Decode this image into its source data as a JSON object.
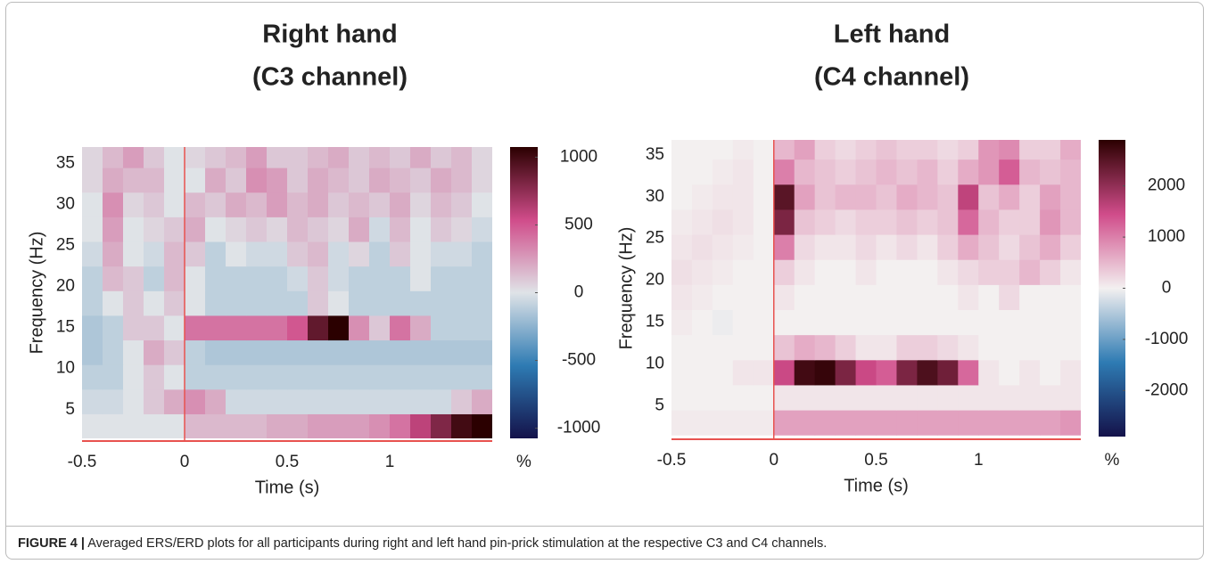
{
  "chart_data": [
    {
      "type": "heatmap",
      "title": "Right hand",
      "subtitle": "(C3 channel)",
      "x_label": "Time (s)",
      "y_label": "Frequency (Hz)",
      "colorbar_label": "%",
      "xlim": [
        -0.5,
        1.5
      ],
      "xticks": [
        -0.5,
        0,
        0.5,
        1
      ],
      "ylim": [
        1.5,
        37
      ],
      "yticks": [
        5,
        10,
        15,
        20,
        25,
        30,
        35
      ],
      "clim": [
        -1075,
        1075
      ],
      "cticks": [
        -1000,
        -500,
        0,
        500,
        1000
      ],
      "colors": [
        "#14124a",
        "#2e7bb3",
        "#dfe3e7",
        "#d04c8a",
        "#2b0000"
      ],
      "vline": 0,
      "line_color": "#e8524f",
      "x": [
        -0.45,
        -0.35,
        -0.25,
        -0.15,
        -0.05,
        0.05,
        0.15,
        0.25,
        0.35,
        0.45,
        0.55,
        0.65,
        0.75,
        0.85,
        0.95,
        1.05,
        1.15,
        1.25,
        1.35,
        1.45
      ],
      "y": [
        3,
        6,
        9,
        12,
        15,
        18,
        21,
        24,
        27,
        30,
        33,
        36
      ],
      "z": [
        [
          0,
          0,
          0,
          0,
          0,
          150,
          150,
          150,
          150,
          200,
          200,
          250,
          250,
          250,
          300,
          400,
          600,
          800,
          1000,
          1075
        ],
        [
          -50,
          -50,
          0,
          100,
          200,
          300,
          200,
          -50,
          -50,
          -50,
          -50,
          -50,
          -50,
          -50,
          -50,
          -50,
          -50,
          -50,
          100,
          200
        ],
        [
          -100,
          -100,
          0,
          100,
          0,
          -100,
          -100,
          -100,
          -100,
          -100,
          -100,
          -100,
          -100,
          -100,
          -100,
          -100,
          -100,
          -100,
          -100,
          -100
        ],
        [
          -150,
          -100,
          0,
          200,
          100,
          -100,
          -150,
          -150,
          -150,
          -150,
          -150,
          -150,
          -150,
          -150,
          -150,
          -150,
          -150,
          -150,
          -150,
          -150
        ],
        [
          -150,
          -100,
          100,
          100,
          0,
          400,
          400,
          400,
          400,
          400,
          500,
          900,
          1075,
          300,
          100,
          400,
          200,
          -100,
          -100,
          -100
        ],
        [
          -100,
          0,
          100,
          0,
          100,
          0,
          -100,
          -100,
          -100,
          -100,
          -100,
          100,
          0,
          -100,
          -100,
          -100,
          -100,
          -100,
          -100,
          -100
        ],
        [
          -100,
          150,
          100,
          -100,
          150,
          0,
          -100,
          -100,
          -100,
          -100,
          -50,
          100,
          -50,
          -100,
          -100,
          -100,
          0,
          -100,
          -100,
          -100
        ],
        [
          -50,
          200,
          0,
          -50,
          150,
          100,
          -100,
          0,
          -50,
          -50,
          100,
          150,
          -50,
          50,
          -100,
          100,
          0,
          -50,
          -50,
          -100
        ],
        [
          0,
          250,
          0,
          50,
          100,
          200,
          0,
          50,
          100,
          50,
          150,
          100,
          50,
          200,
          -50,
          150,
          0,
          100,
          50,
          -50
        ],
        [
          0,
          300,
          50,
          100,
          0,
          150,
          100,
          200,
          150,
          250,
          150,
          200,
          100,
          150,
          100,
          200,
          50,
          150,
          100,
          0
        ],
        [
          50,
          200,
          150,
          150,
          0,
          0,
          200,
          100,
          300,
          250,
          100,
          200,
          150,
          100,
          200,
          150,
          100,
          200,
          150,
          50
        ],
        [
          50,
          150,
          250,
          100,
          0,
          50,
          100,
          150,
          250,
          100,
          100,
          150,
          200,
          100,
          150,
          100,
          200,
          100,
          150,
          50
        ]
      ]
    },
    {
      "type": "heatmap",
      "title": "Left hand",
      "subtitle": "(C4 channel)",
      "x_label": "Time (s)",
      "y_label": "Frequency (Hz)",
      "colorbar_label": "%",
      "xlim": [
        -0.5,
        1.5
      ],
      "xticks": [
        -0.5,
        0,
        0.5,
        1
      ],
      "ylim": [
        1.3,
        36.8
      ],
      "yticks": [
        5,
        10,
        15,
        20,
        25,
        30,
        35
      ],
      "clim": [
        -2900,
        2900
      ],
      "cticks": [
        -2000,
        -1000,
        0,
        1000,
        2000
      ],
      "colors": [
        "#14124a",
        "#2e7bb3",
        "#f3f0f0",
        "#d04c8a",
        "#2b0000"
      ],
      "vline": 0,
      "line_color": "#e8524f",
      "x": [
        -0.45,
        -0.35,
        -0.25,
        -0.15,
        -0.05,
        0.05,
        0.15,
        0.25,
        0.35,
        0.45,
        0.55,
        0.65,
        0.75,
        0.85,
        0.95,
        1.05,
        1.15,
        1.25,
        1.35,
        1.45
      ],
      "y": [
        3,
        6,
        9,
        12,
        15,
        18,
        21,
        24,
        27,
        30,
        33,
        36
      ],
      "z": [
        [
          50,
          50,
          50,
          50,
          50,
          700,
          700,
          700,
          700,
          700,
          700,
          700,
          700,
          700,
          700,
          700,
          700,
          700,
          700,
          800
        ],
        [
          0,
          0,
          0,
          0,
          0,
          100,
          100,
          100,
          100,
          100,
          100,
          100,
          100,
          100,
          100,
          100,
          100,
          100,
          100,
          100
        ],
        [
          0,
          0,
          0,
          100,
          100,
          1500,
          2700,
          2800,
          2200,
          1500,
          1300,
          2200,
          2600,
          2300,
          1200,
          100,
          0,
          100,
          0,
          100
        ],
        [
          0,
          0,
          0,
          0,
          0,
          400,
          600,
          500,
          300,
          100,
          100,
          300,
          300,
          200,
          100,
          0,
          0,
          0,
          0,
          0
        ],
        [
          50,
          0,
          -50,
          0,
          0,
          0,
          0,
          0,
          0,
          0,
          0,
          0,
          0,
          0,
          0,
          0,
          0,
          0,
          0,
          0
        ],
        [
          100,
          50,
          0,
          0,
          0,
          100,
          0,
          0,
          0,
          0,
          0,
          0,
          0,
          0,
          100,
          0,
          200,
          0,
          0,
          0
        ],
        [
          150,
          100,
          50,
          0,
          0,
          300,
          100,
          0,
          0,
          100,
          0,
          0,
          0,
          100,
          200,
          300,
          300,
          500,
          300,
          100
        ],
        [
          100,
          150,
          100,
          50,
          0,
          1000,
          200,
          100,
          100,
          200,
          100,
          200,
          100,
          300,
          600,
          400,
          200,
          400,
          600,
          300
        ],
        [
          50,
          100,
          150,
          100,
          0,
          2200,
          400,
          300,
          200,
          300,
          300,
          400,
          300,
          400,
          1200,
          500,
          300,
          300,
          800,
          500
        ],
        [
          0,
          50,
          100,
          100,
          0,
          2500,
          700,
          400,
          500,
          500,
          400,
          600,
          500,
          400,
          1600,
          400,
          600,
          300,
          700,
          500
        ],
        [
          0,
          0,
          50,
          100,
          0,
          1000,
          500,
          400,
          300,
          400,
          500,
          400,
          500,
          300,
          600,
          800,
          1300,
          500,
          400,
          500
        ],
        [
          0,
          0,
          0,
          50,
          0,
          500,
          700,
          300,
          200,
          300,
          400,
          300,
          300,
          200,
          300,
          800,
          900,
          300,
          300,
          600
        ]
      ]
    }
  ],
  "caption": {
    "label": "FIGURE 4 |",
    "text": " Averaged ERS/ERD plots for all participants during right and left hand pin-prick stimulation at the respective C3 and C4 channels."
  }
}
